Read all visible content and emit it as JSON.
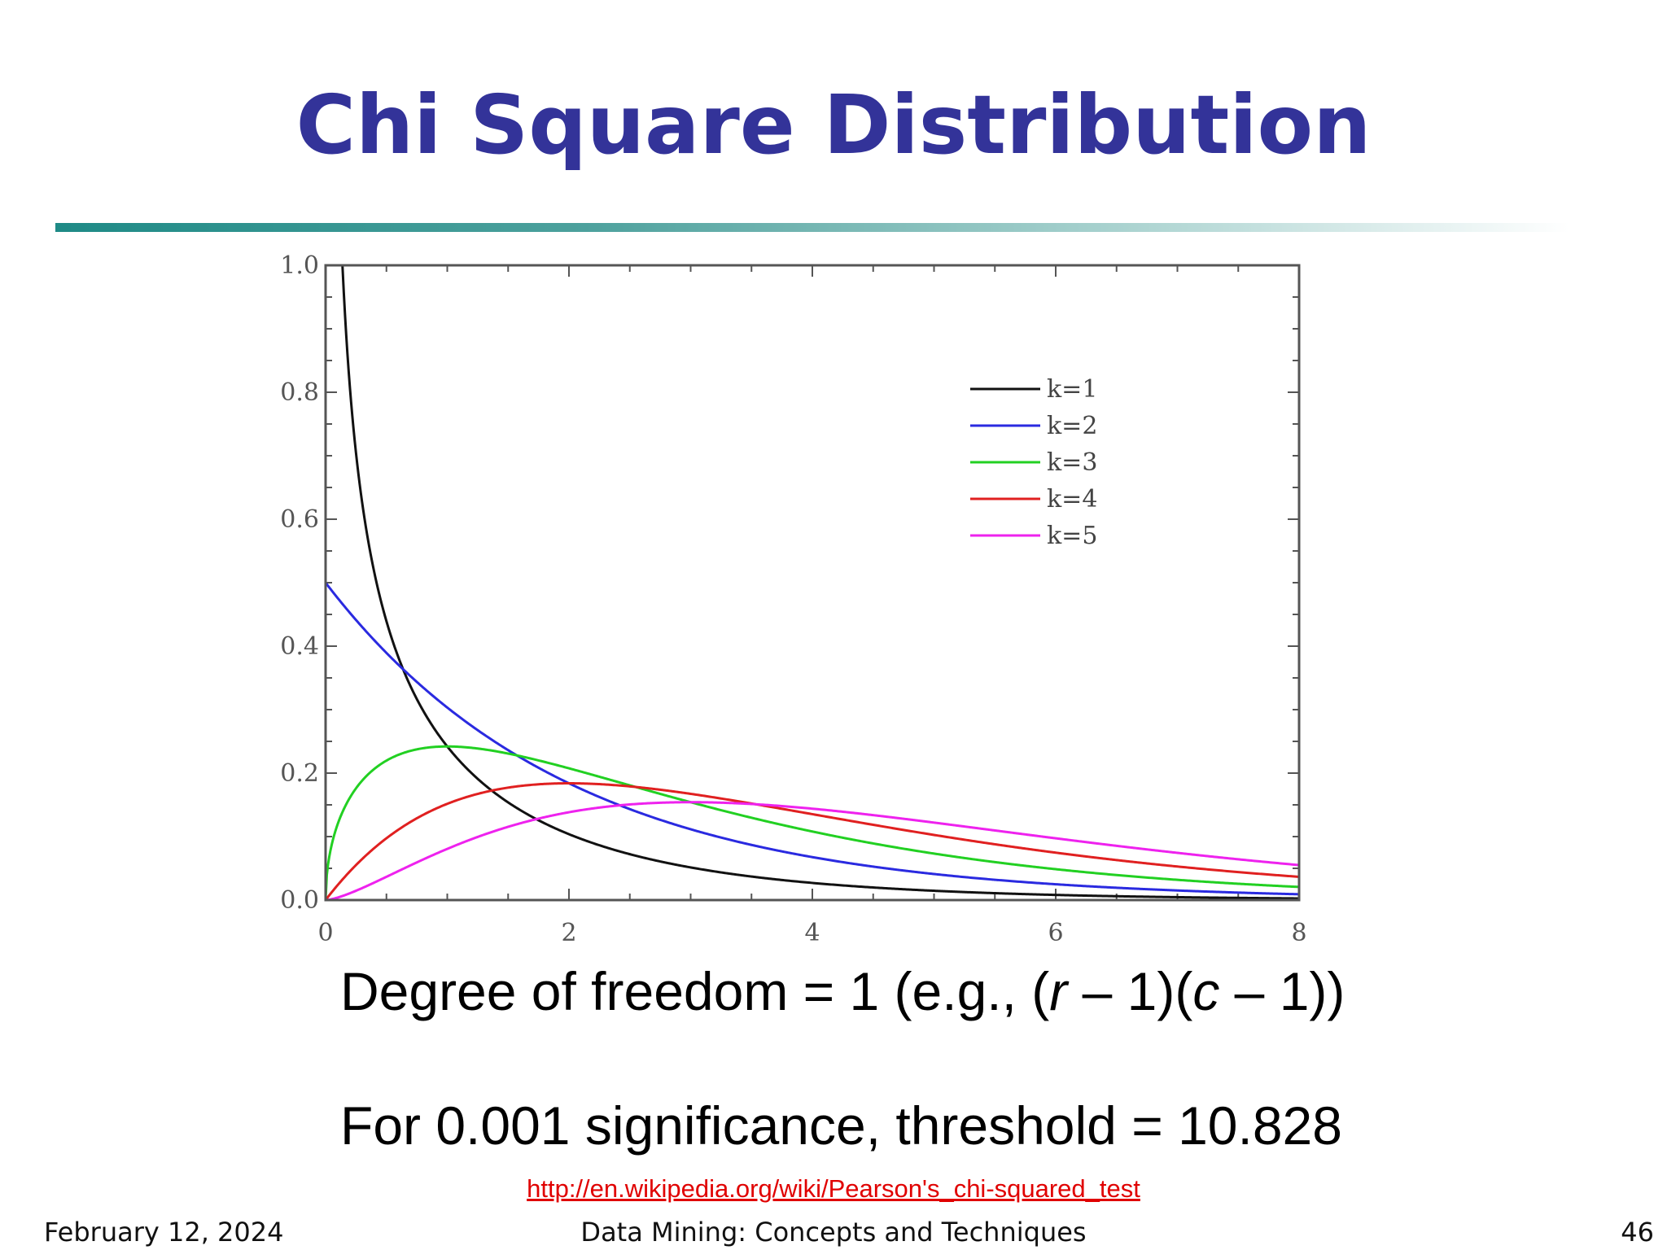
{
  "slide": {
    "title": "Chi Square Distribution",
    "line1": {
      "prefix": "Degree of freedom = 1  (e.g., (",
      "r": "r",
      "mid": " – 1)(",
      "c": "c",
      "suffix": " – 1))"
    },
    "line2": "For 0.001 significance, threshold = 10.828",
    "source_link": "http://en.wikipedia.org/wiki/Pearson's_chi-squared_test",
    "footer": {
      "date": "February 12, 2024",
      "course": "Data Mining: Concepts and Techniques",
      "page": "46"
    },
    "colors": {
      "title": "#333399",
      "link": "#e00000"
    }
  },
  "chart_data": {
    "type": "line",
    "function": "chi-square probability density",
    "xlim": [
      0,
      8
    ],
    "ylim": [
      0,
      1.0
    ],
    "x_ticks": [
      "0",
      "2",
      "4",
      "6",
      "8"
    ],
    "y_ticks": [
      "0.0",
      "0.2",
      "0.4",
      "0.6",
      "0.8",
      "1.0"
    ],
    "legend_position": "top-right",
    "series": [
      {
        "name": "k=1",
        "k": 1,
        "color": "#111111"
      },
      {
        "name": "k=2",
        "k": 2,
        "color": "#2a2ae0"
      },
      {
        "name": "k=3",
        "k": 3,
        "color": "#22d022"
      },
      {
        "name": "k=4",
        "k": 4,
        "color": "#e02020"
      },
      {
        "name": "k=5",
        "k": 5,
        "color": "#ee22ee"
      }
    ]
  }
}
